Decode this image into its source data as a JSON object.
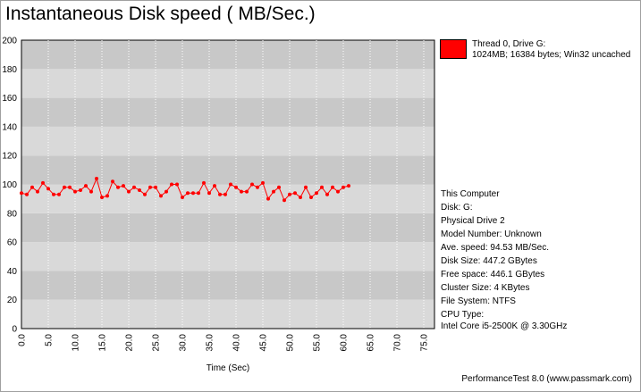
{
  "window": {
    "title": "Instantaneous Disk speed ( MB/Sec.)",
    "footer": "PerformanceTest 8.0 (www.passmark.com)"
  },
  "legend": {
    "line1": "Thread 0, Drive G:",
    "line2": "1024MB; 16384 bytes; Win32 uncached",
    "color": "#ff0000"
  },
  "info": {
    "heading": "This Computer",
    "disk": "Disk: G:",
    "physical_drive": "Physical Drive 2",
    "model_number": "Model Number: Unknown",
    "ave_speed": "Ave. speed: 94.53 MB/Sec.",
    "disk_size": "Disk Size: 447.2 GBytes",
    "free_space": "Free space: 446.1 GBytes",
    "cluster_size": "Cluster Size: 4 KBytes",
    "file_system": "File System: NTFS",
    "cpu_type_label": "CPU Type:",
    "cpu_type_value": "Intel Core i5-2500K @ 3.30GHz"
  },
  "chart_data": {
    "type": "line",
    "title": "Instantaneous Disk speed ( MB/Sec.)",
    "xlabel": "Time (Sec)",
    "ylabel": "",
    "xlim": [
      0,
      77
    ],
    "ylim": [
      0,
      200
    ],
    "y_ticks": [
      "0",
      "20",
      "40",
      "60",
      "80",
      "100",
      "120",
      "140",
      "160",
      "180",
      "200"
    ],
    "x_ticks": [
      "0.0",
      "5.0",
      "10.0",
      "15.0",
      "20.0",
      "25.0",
      "30.0",
      "35.0",
      "40.0",
      "45.0",
      "50.0",
      "55.0",
      "60.0",
      "65.0",
      "70.0",
      "75.0"
    ],
    "grid": true,
    "legend_position": "top-right",
    "series": [
      {
        "name": "Thread 0, Drive G:",
        "color": "#ff0000",
        "x": [
          0,
          1,
          2,
          3,
          4,
          5,
          6,
          7,
          8,
          9,
          10,
          11,
          12,
          13,
          14,
          15,
          16,
          17,
          18,
          19,
          20,
          21,
          22,
          23,
          24,
          25,
          26,
          27,
          28,
          29,
          30,
          31,
          32,
          33,
          34,
          35,
          36,
          37,
          38,
          39,
          40,
          41,
          42,
          43,
          44,
          45,
          46,
          47,
          48,
          49,
          50,
          51,
          52,
          53,
          54,
          55,
          56,
          57,
          58,
          59,
          60,
          61
        ],
        "values": [
          94,
          93,
          98,
          95,
          101,
          97,
          93,
          93,
          98,
          98,
          95,
          96,
          99,
          95,
          104,
          91,
          92,
          102,
          98,
          99,
          95,
          98,
          96,
          93,
          98,
          98,
          92,
          95,
          100,
          100,
          91,
          94,
          94,
          94,
          101,
          94,
          99,
          93,
          93,
          100,
          98,
          95,
          95,
          100,
          98,
          101,
          90,
          95,
          98,
          89,
          93,
          94,
          91,
          98,
          91,
          94,
          98,
          93,
          98,
          95,
          98,
          99
        ]
      }
    ]
  }
}
